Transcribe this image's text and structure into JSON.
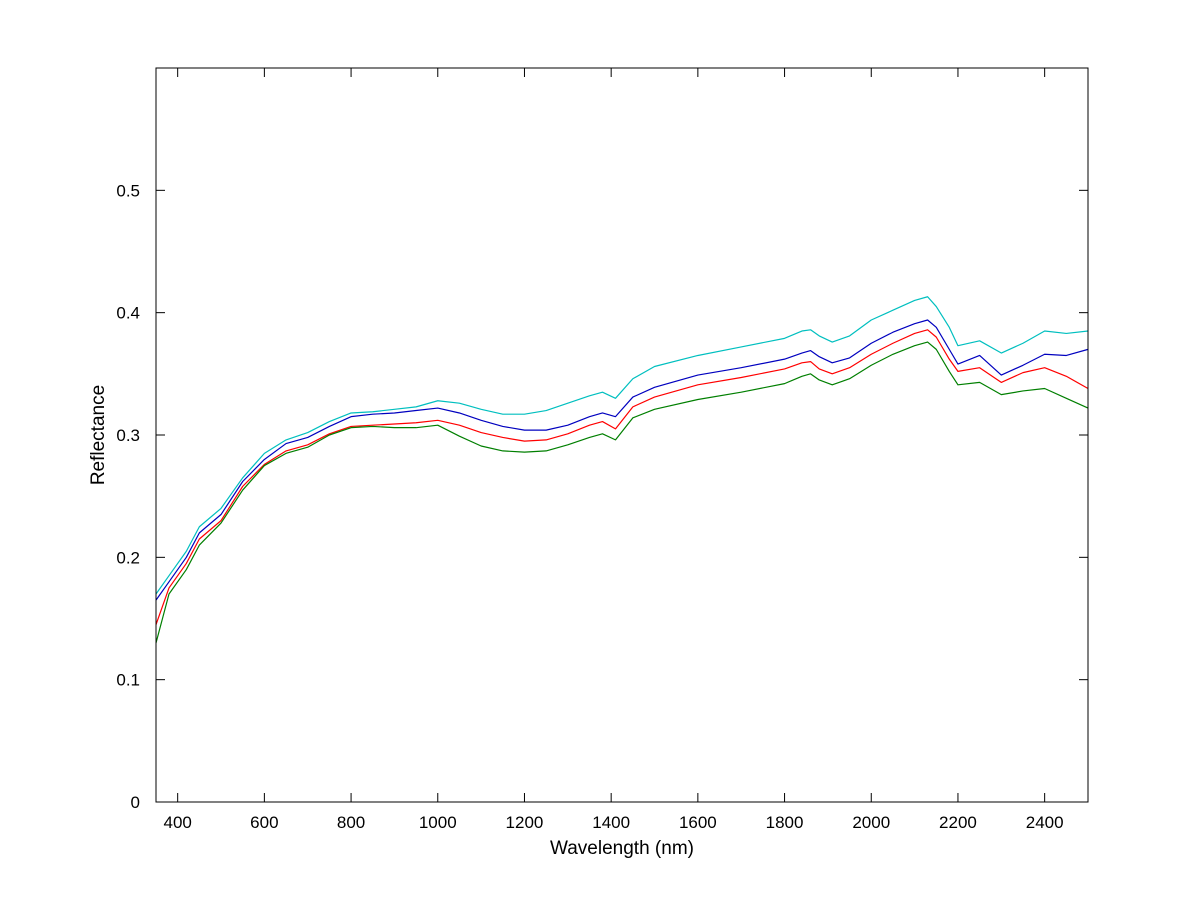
{
  "colors": {
    "background": "#ffffff",
    "axes": "#000000"
  },
  "chart_data": {
    "type": "line",
    "xlabel": "Wavelength (nm)",
    "ylabel": "Reflectance",
    "xlim": [
      350,
      2500
    ],
    "ylim": [
      0,
      0.6
    ],
    "xticks": [
      400,
      600,
      800,
      1000,
      1200,
      1400,
      1600,
      1800,
      2000,
      2200,
      2400
    ],
    "xtick_labels": [
      "400",
      "600",
      "800",
      "1000",
      "1200",
      "1400",
      "1600",
      "1800",
      "2000",
      "2200",
      "2400"
    ],
    "yticks": [
      0,
      0.1,
      0.2,
      0.3,
      0.4,
      0.5
    ],
    "ytick_labels": [
      "0",
      "0.1",
      "0.2",
      "0.3",
      "0.4",
      "0.5"
    ],
    "grid": false,
    "legend": "none",
    "x": [
      350,
      380,
      420,
      450,
      500,
      550,
      600,
      650,
      700,
      750,
      800,
      850,
      900,
      950,
      1000,
      1050,
      1100,
      1150,
      1200,
      1250,
      1300,
      1350,
      1380,
      1410,
      1450,
      1500,
      1600,
      1700,
      1800,
      1840,
      1860,
      1880,
      1910,
      1950,
      2000,
      2050,
      2100,
      2130,
      2150,
      2180,
      2200,
      2250,
      2300,
      2350,
      2400,
      2450,
      2500
    ],
    "series": [
      {
        "color": "#00bfbf",
        "values": [
          0.17,
          0.185,
          0.205,
          0.225,
          0.24,
          0.265,
          0.285,
          0.296,
          0.302,
          0.311,
          0.318,
          0.319,
          0.321,
          0.323,
          0.328,
          0.326,
          0.321,
          0.317,
          0.317,
          0.32,
          0.326,
          0.332,
          0.335,
          0.33,
          0.346,
          0.356,
          0.365,
          0.372,
          0.379,
          0.385,
          0.386,
          0.381,
          0.376,
          0.381,
          0.394,
          0.402,
          0.41,
          0.413,
          0.405,
          0.388,
          0.373,
          0.377,
          0.367,
          0.375,
          0.385,
          0.383,
          0.385
        ]
      },
      {
        "color": "#0000bf",
        "values": [
          0.165,
          0.18,
          0.2,
          0.22,
          0.235,
          0.262,
          0.28,
          0.293,
          0.298,
          0.307,
          0.315,
          0.317,
          0.318,
          0.32,
          0.322,
          0.318,
          0.312,
          0.307,
          0.304,
          0.304,
          0.308,
          0.315,
          0.318,
          0.315,
          0.331,
          0.339,
          0.349,
          0.355,
          0.362,
          0.367,
          0.369,
          0.364,
          0.359,
          0.363,
          0.375,
          0.384,
          0.391,
          0.394,
          0.388,
          0.37,
          0.358,
          0.365,
          0.349,
          0.357,
          0.366,
          0.365,
          0.37
        ]
      },
      {
        "color": "#ff0000",
        "values": [
          0.145,
          0.175,
          0.195,
          0.215,
          0.23,
          0.258,
          0.276,
          0.287,
          0.292,
          0.301,
          0.307,
          0.308,
          0.309,
          0.31,
          0.312,
          0.308,
          0.302,
          0.298,
          0.295,
          0.296,
          0.301,
          0.308,
          0.311,
          0.305,
          0.323,
          0.331,
          0.341,
          0.347,
          0.354,
          0.359,
          0.36,
          0.354,
          0.35,
          0.355,
          0.366,
          0.375,
          0.383,
          0.386,
          0.38,
          0.362,
          0.352,
          0.355,
          0.343,
          0.351,
          0.355,
          0.348,
          0.338
        ]
      },
      {
        "color": "#007f00",
        "values": [
          0.13,
          0.17,
          0.19,
          0.21,
          0.228,
          0.255,
          0.275,
          0.285,
          0.29,
          0.3,
          0.306,
          0.307,
          0.306,
          0.306,
          0.308,
          0.299,
          0.291,
          0.287,
          0.286,
          0.287,
          0.292,
          0.298,
          0.301,
          0.296,
          0.314,
          0.321,
          0.329,
          0.335,
          0.342,
          0.348,
          0.35,
          0.345,
          0.341,
          0.346,
          0.357,
          0.366,
          0.373,
          0.376,
          0.37,
          0.352,
          0.341,
          0.343,
          0.333,
          0.336,
          0.338,
          0.33,
          0.322
        ]
      }
    ]
  }
}
